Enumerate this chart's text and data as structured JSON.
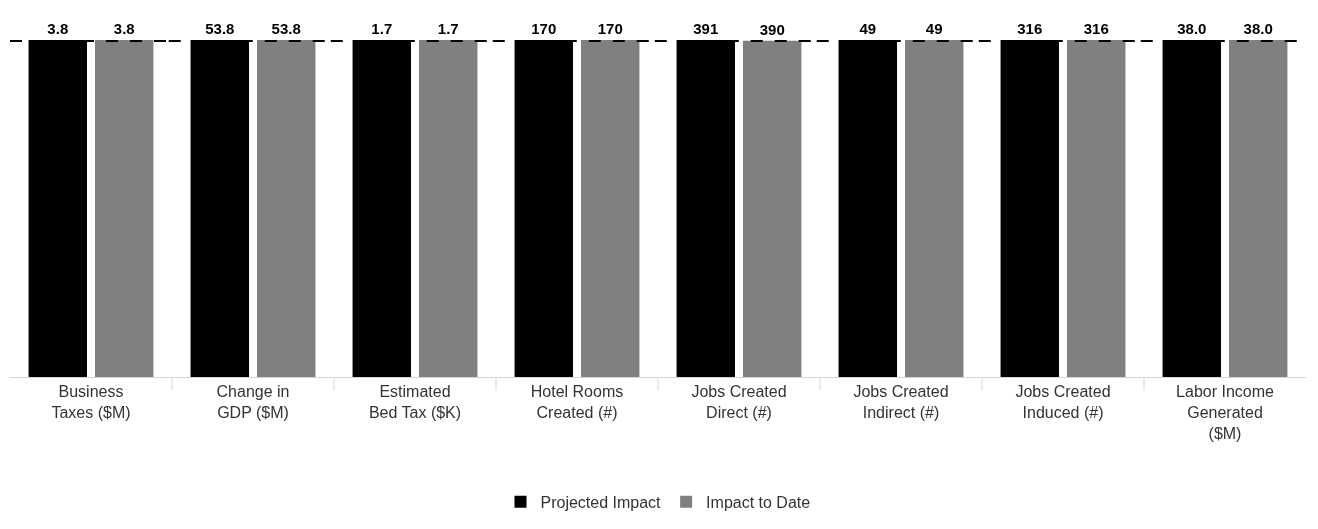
{
  "chart_data": [
    {
      "type": "bar",
      "categories": [
        "Business Taxes ($M)"
      ],
      "data_labels": true,
      "legend": "bottom",
      "series": [
        {
          "name": "Projected Impact",
          "color": "#000000",
          "values": [
            3.8
          ]
        },
        {
          "name": "Impact to Date",
          "color": "#808080",
          "values": [
            3.8
          ]
        }
      ],
      "ref_lines": [
        {
          "axis": "y",
          "value": 3.8,
          "color": "#000000",
          "line_style": "dashed"
        }
      ]
    },
    {
      "type": "bar",
      "categories": [
        "Change in GDP ($M)"
      ],
      "data_labels": true,
      "series": [
        {
          "color": "#000000",
          "values": [
            53.8
          ]
        },
        {
          "color": "#808080",
          "values": [
            53.8
          ]
        }
      ],
      "ref_lines": [
        {
          "axis": "y",
          "value": 53.8,
          "color": "#000000",
          "line_style": "dashed"
        }
      ]
    },
    {
      "type": "bar",
      "categories": [
        "Estimated Bed Tax ($K)"
      ],
      "data_labels": true,
      "series": [
        {
          "color": "#000000",
          "values": [
            1.7
          ]
        },
        {
          "color": "#808080",
          "values": [
            1.7
          ]
        }
      ],
      "ref_lines": [
        {
          "axis": "y",
          "value": 1.7,
          "color": "#000000",
          "line_style": "dashed"
        }
      ]
    },
    {
      "type": "bar",
      "categories": [
        "Hotel Rooms Created (#)"
      ],
      "data_labels": true,
      "series": [
        {
          "color": "#000000",
          "values": [
            170
          ]
        },
        {
          "color": "#808080",
          "values": [
            170
          ]
        }
      ],
      "ref_lines": [
        {
          "axis": "y",
          "value": 170,
          "color": "#000000",
          "line_style": "dashed"
        }
      ]
    },
    {
      "type": "bar",
      "categories": [
        "Jobs Created Direct (#)"
      ],
      "data_labels": true,
      "series": [
        {
          "color": "#000000",
          "values": [
            391
          ]
        },
        {
          "color": "#808080",
          "values": [
            390
          ]
        }
      ],
      "ref_lines": [
        {
          "axis": "y",
          "value": 391,
          "color": "#000000",
          "line_style": "dashed"
        }
      ]
    },
    {
      "type": "bar",
      "categories": [
        "Jobs Created Indirect (#)"
      ],
      "data_labels": true,
      "series": [
        {
          "color": "#000000",
          "values": [
            49
          ]
        },
        {
          "color": "#808080",
          "values": [
            49
          ]
        }
      ],
      "ref_lines": [
        {
          "axis": "y",
          "value": 49,
          "color": "#000000",
          "line_style": "dashed"
        }
      ]
    },
    {
      "type": "bar",
      "categories": [
        "Jobs Created Induced (#)"
      ],
      "data_labels": true,
      "series": [
        {
          "color": "#000000",
          "values": [
            316
          ]
        },
        {
          "color": "#808080",
          "values": [
            316
          ]
        }
      ],
      "ref_lines": [
        {
          "axis": "y",
          "value": 316,
          "color": "#000000",
          "line_style": "dashed"
        }
      ]
    },
    {
      "type": "bar",
      "categories": [
        "Labor Income Generated ($M)"
      ],
      "series": [
        {
          "color": "#000000",
          "values": [
            38
          ],
          "value_labels": [
            "38.0"
          ]
        },
        {
          "color": "#808080",
          "values": [
            38
          ],
          "value_labels": [
            "38.0"
          ]
        }
      ],
      "ref_lines": [
        {
          "axis": "y",
          "value": 38,
          "color": "#000000",
          "line_style": "dashed"
        }
      ]
    }
  ]
}
